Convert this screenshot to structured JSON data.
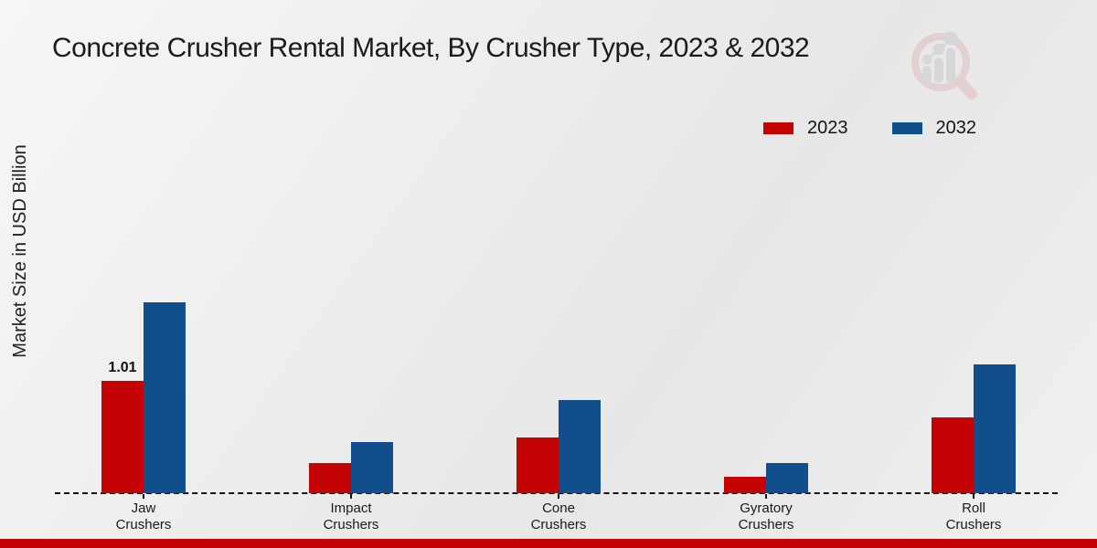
{
  "title": "Concrete Crusher Rental Market, By Crusher Type, 2023 & 2032",
  "y_axis_label": "Market Size in USD Billion",
  "colors": {
    "series_2023": "#c40404",
    "series_2032": "#124e8c",
    "footer_strip": "#c40404",
    "baseline": "#141414"
  },
  "logo": {
    "name": "market-research-watermark-logo"
  },
  "chart_data": {
    "type": "bar",
    "title": "Concrete Crusher Rental Market, By Crusher Type, 2023 & 2032",
    "xlabel": "",
    "ylabel": "Market Size in USD Billion",
    "ylim": [
      0,
      2.0
    ],
    "grid": false,
    "legend_position": "top-right",
    "baseline_style": "dashed",
    "categories": [
      "Jaw\nCrushers",
      "Impact\nCrushers",
      "Cone\nCrushers",
      "Gyratory\nCrushers",
      "Roll\nCrushers"
    ],
    "series": [
      {
        "name": "2023",
        "color": "#c40404",
        "values": [
          1.01,
          0.27,
          0.5,
          0.15,
          0.68
        ],
        "labels": [
          "1.01",
          "",
          "",
          "",
          ""
        ]
      },
      {
        "name": "2032",
        "color": "#124e8c",
        "values": [
          1.72,
          0.46,
          0.84,
          0.27,
          1.16
        ],
        "labels": [
          "",
          "",
          "",
          "",
          ""
        ]
      }
    ]
  }
}
